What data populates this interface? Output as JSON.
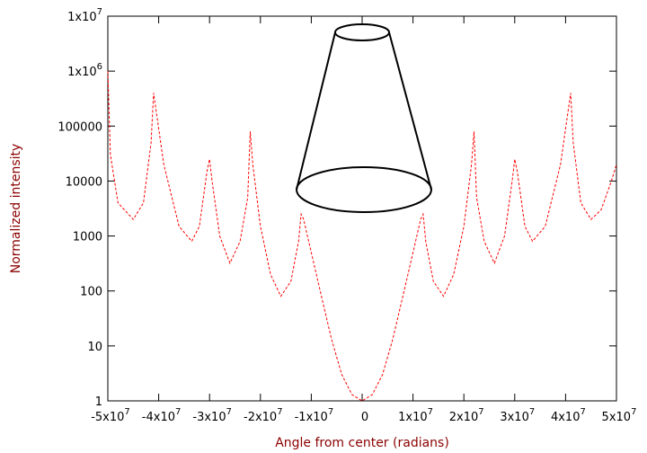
{
  "chart_data": {
    "type": "line",
    "xlabel": "Angle from center (radians)",
    "ylabel": "Normalized intensity",
    "x": [
      -50000000.0,
      -49500000.0,
      -48000000.0,
      -45000000.0,
      -43000000.0,
      -41500000.0,
      -41000000.0,
      -39000000.0,
      -36000000.0,
      -33500000.0,
      -32000000.0,
      -30500000.0,
      -30000000.0,
      -29500000.0,
      -28000000.0,
      -26000000.0,
      -24000000.0,
      -22500000.0,
      -22000000.0,
      -21500000.0,
      -20000000.0,
      -18000000.0,
      -16000000.0,
      -14000000.0,
      -12500000.0,
      -12000000.0,
      -11500000.0,
      -10000000.0,
      -8000000.0,
      -6000000.0,
      -4000000.0,
      -2000000.0,
      0,
      2000000.0,
      4000000.0,
      6000000.0,
      8000000.0,
      10000000.0,
      11500000.0,
      12000000.0,
      12500000.0,
      14000000.0,
      16000000.0,
      18000000.0,
      20000000.0,
      21500000.0,
      22000000.0,
      22500000.0,
      24000000.0,
      26000000.0,
      28000000.0,
      29500000.0,
      30000000.0,
      30500000.0,
      32000000.0,
      33500000.0,
      36000000.0,
      39000000.0,
      41000000.0,
      41500000.0,
      43000000.0,
      45000000.0,
      47000000.0,
      49000000.0,
      50000000.0
    ],
    "values": [
      1000000,
      30000,
      4000,
      2000,
      4000,
      50000,
      400000,
      20000,
      1500,
      800,
      1500,
      15000,
      25000,
      10000,
      1000,
      320,
      800,
      5000,
      80000,
      20000,
      1500,
      200,
      80,
      150,
      800,
      2500,
      2000,
      500,
      80,
      13,
      3,
      1.3,
      1,
      1.3,
      3,
      13,
      80,
      500,
      2000,
      2500,
      800,
      150,
      80,
      200,
      1500,
      20000,
      80000,
      5000,
      800,
      320,
      1000,
      10000,
      25000,
      15000,
      1500,
      800,
      1500,
      20000,
      400000,
      50000,
      4000,
      2000,
      3000,
      10000,
      20000
    ],
    "color": "#ff0000",
    "xlim": [
      -50000000.0,
      50000000.0
    ],
    "xticks": [
      {
        "value": -50000000.0,
        "label": "-5x10",
        "exponent": "7"
      },
      {
        "value": -40000000.0,
        "label": "-4x10",
        "exponent": "7"
      },
      {
        "value": -30000000.0,
        "label": "-3x10",
        "exponent": "7"
      },
      {
        "value": -20000000.0,
        "label": "-2x10",
        "exponent": "7"
      },
      {
        "value": -10000000.0,
        "label": "-1x10",
        "exponent": "7"
      },
      0,
      {
        "value": 10000000.0,
        "label": "1x10",
        "exponent": "7"
      },
      {
        "value": 20000000.0,
        "label": "2x10",
        "exponent": "7"
      },
      {
        "value": 30000000.0,
        "label": "3x10",
        "exponent": "7"
      },
      {
        "value": 40000000.0,
        "label": "4x10",
        "exponent": "7"
      },
      {
        "value": 50000000.0,
        "label": "5x10",
        "exponent": "7"
      }
    ],
    "ylim": [
      1,
      10000000
    ],
    "yticks": [
      1,
      10,
      100,
      1000,
      10000,
      100000,
      {
        "value": 1000000,
        "label": "1x10",
        "exponent": "6"
      },
      {
        "value": 10000000,
        "label": "1x10",
        "exponent": "7"
      }
    ],
    "yscale": "log"
  }
}
